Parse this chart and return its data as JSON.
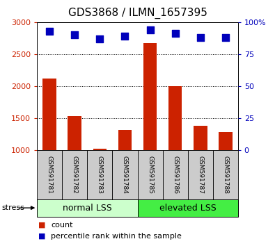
{
  "title": "GDS3868 / ILMN_1657395",
  "samples": [
    "GSM591781",
    "GSM591782",
    "GSM591783",
    "GSM591784",
    "GSM591785",
    "GSM591786",
    "GSM591787",
    "GSM591788"
  ],
  "counts": [
    2120,
    1530,
    1020,
    1310,
    2670,
    2000,
    1380,
    1280
  ],
  "pct_ranks_right": [
    93,
    90,
    87,
    89,
    94,
    91,
    88,
    88
  ],
  "ylim_left": [
    1000,
    3000
  ],
  "ylim_right": [
    0,
    100
  ],
  "yticks_left": [
    1000,
    1500,
    2000,
    2500,
    3000
  ],
  "yticks_right": [
    0,
    25,
    50,
    75,
    100
  ],
  "bar_color": "#cc2200",
  "dot_color": "#0000bb",
  "group1_label": "normal LSS",
  "group2_label": "elevated LSS",
  "group1_color": "#ccffcc",
  "group2_color": "#44ee44",
  "stress_label": "stress",
  "legend_count": "count",
  "legend_pct": "percentile rank within the sample",
  "bar_width": 0.55,
  "dot_size": 45,
  "background_color": "#ffffff",
  "plot_bg": "#ffffff",
  "grid_color": "#000000",
  "label_color_left": "#cc2200",
  "label_color_right": "#0000bb",
  "title_fontsize": 11,
  "tick_fontsize": 8,
  "legend_fontsize": 8,
  "group_fontsize": 9,
  "stress_fontsize": 8,
  "sample_fontsize": 6.5
}
